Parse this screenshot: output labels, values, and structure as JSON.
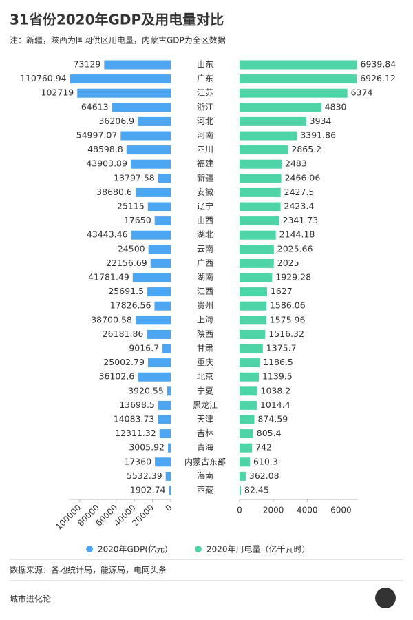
{
  "chart_data": {
    "type": "bar",
    "title": "31省份2020年GDP及用电量对比",
    "subtitle": "注：新疆，陕西为国网供区用电量，内蒙古GDP为全区数据",
    "categories": [
      "山东",
      "广东",
      "江苏",
      "浙江",
      "河北",
      "河南",
      "四川",
      "福建",
      "新疆",
      "安徽",
      "辽宁",
      "山西",
      "湖北",
      "云南",
      "广西",
      "湖南",
      "江西",
      "贵州",
      "上海",
      "陕西",
      "甘肃",
      "重庆",
      "北京",
      "宁夏",
      "黑龙江",
      "天津",
      "吉林",
      "青海",
      "内蒙古东部",
      "海南",
      "西藏"
    ],
    "series": [
      {
        "name": "2020年GDP(亿元）",
        "color": "#4da6f2",
        "values": [
          73129,
          110760.94,
          102719,
          64613,
          36206.9,
          54997.07,
          48598.8,
          43903.89,
          13797.58,
          38680.6,
          25115,
          17650,
          43443.46,
          24500,
          22156.69,
          41781.49,
          25691.5,
          17826.56,
          38700.58,
          26181.86,
          9016.7,
          25002.79,
          36102.6,
          3920.55,
          13698.5,
          14083.73,
          12311.32,
          3005.92,
          17360,
          5532.39,
          1902.74
        ],
        "xlim": [
          0,
          112000
        ],
        "xticks": [
          0,
          20000,
          40000,
          60000,
          80000,
          100000
        ]
      },
      {
        "name": "2020年用电量（亿千瓦时）",
        "color": "#4fd4a8",
        "values": [
          6939.84,
          6926.12,
          6374,
          4830,
          3934,
          3391.86,
          2865.2,
          2483,
          2466.06,
          2427.5,
          2423.4,
          2341.73,
          2144.18,
          2025.66,
          2025,
          1929.28,
          1627,
          1586.06,
          1575.96,
          1516.32,
          1375.7,
          1186.5,
          1139.5,
          1038.2,
          1014.4,
          874.59,
          805.4,
          742,
          610.3,
          362.08,
          82.45
        ],
        "xlim": [
          0,
          7000
        ],
        "xticks": [
          0,
          2000,
          4000,
          6000
        ]
      }
    ],
    "source": "数据来源：各地统计局，能源局，电网头条",
    "footer": "城市进化论",
    "logo": "UE"
  }
}
